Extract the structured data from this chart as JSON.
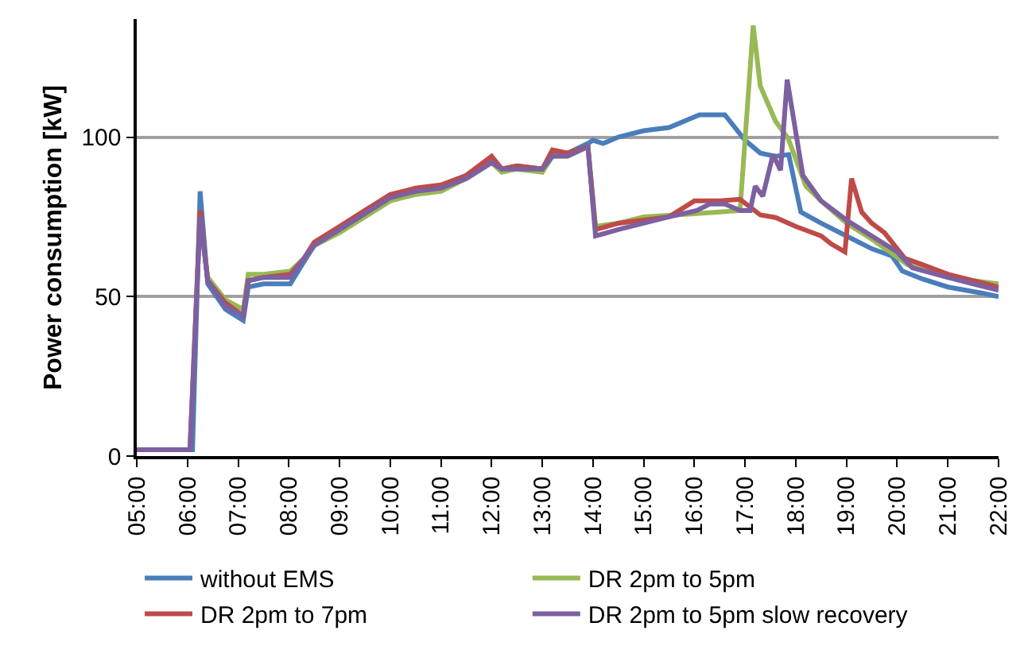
{
  "chart_data": {
    "type": "line",
    "ylabel": "Power consumption [kW]",
    "xlim": [
      5,
      22
    ],
    "xticks": [
      {
        "value": 5,
        "label": "05:00"
      },
      {
        "value": 6,
        "label": "06:00"
      },
      {
        "value": 7,
        "label": "07:00"
      },
      {
        "value": 8,
        "label": "08:00"
      },
      {
        "value": 9,
        "label": "09:00"
      },
      {
        "value": 10,
        "label": "10:00"
      },
      {
        "value": 11,
        "label": "11:00"
      },
      {
        "value": 12,
        "label": "12:00"
      },
      {
        "value": 13,
        "label": "13:00"
      },
      {
        "value": 14,
        "label": "14:00"
      },
      {
        "value": 15,
        "label": "15:00"
      },
      {
        "value": 16,
        "label": "16:00"
      },
      {
        "value": 17,
        "label": "17:00"
      },
      {
        "value": 18,
        "label": "18:00"
      },
      {
        "value": 19,
        "label": "19:00"
      },
      {
        "value": 20,
        "label": "20:00"
      },
      {
        "value": 21,
        "label": "21:00"
      },
      {
        "value": 22,
        "label": "22:00"
      }
    ],
    "ylim": [
      0,
      137
    ],
    "yticks": [
      0,
      50,
      100
    ],
    "grid": "y",
    "legend": "bottom",
    "marker": "none",
    "line_style": "solid",
    "series": [
      {
        "name": "without EMS",
        "color": "#4a7ebb",
        "x": [
          5,
          6.1,
          6.25,
          6.4,
          6.75,
          7.1,
          7.2,
          7.5,
          8.03,
          8.3,
          8.5,
          9,
          9.5,
          10,
          10.5,
          11,
          11.5,
          12,
          12.2,
          12.5,
          13,
          13.2,
          13.5,
          13.9,
          14,
          14.2,
          14.5,
          15,
          15.5,
          16.1,
          16.6,
          17,
          17.3,
          17.6,
          17.86,
          18.1,
          18.5,
          19,
          19.5,
          19.9,
          20.1,
          20.5,
          21,
          21.7,
          22
        ],
        "values": [
          2,
          2,
          83,
          54,
          46,
          42.5,
          53,
          54,
          54,
          61,
          66,
          71,
          76,
          81,
          83,
          84,
          88,
          93,
          90,
          91,
          90,
          95,
          95,
          98,
          99,
          98,
          100,
          102,
          103,
          107,
          107,
          99,
          95,
          94,
          94.5,
          76.5,
          73,
          69,
          65,
          62.7,
          58,
          55.5,
          53,
          51,
          50
        ]
      },
      {
        "name": "DR 2pm to 5pm",
        "color": "#98b954",
        "x": [
          6.25,
          6.4,
          6.75,
          7.1,
          7.2,
          7.5,
          8.03,
          8.3,
          8.5,
          9,
          9.5,
          10,
          10.5,
          11,
          11.5,
          12,
          12.2,
          12.5,
          13,
          13.2,
          13.5,
          13.9,
          14.05,
          14.5,
          15,
          16,
          16.9,
          17.16,
          17.3,
          17.6,
          17.85,
          18.2,
          18.5,
          19,
          19.5,
          19.9,
          20.2,
          21,
          21.5,
          22
        ],
        "values": [
          74,
          56,
          49,
          46,
          57,
          57,
          58,
          62,
          66,
          70,
          75,
          80,
          82,
          83,
          87,
          92,
          89,
          90,
          89,
          94,
          94,
          97,
          72,
          73,
          75,
          76,
          77,
          135,
          116,
          105,
          99.5,
          84.6,
          80,
          73,
          68,
          63.5,
          60,
          56,
          55,
          54
        ]
      },
      {
        "name": "DR 2pm to 7pm",
        "color": "#be4b48",
        "x": [
          5,
          6.05,
          6.25,
          6.4,
          6.75,
          7.1,
          7.2,
          7.5,
          8.03,
          8.3,
          8.5,
          9,
          9.5,
          10,
          10.5,
          11,
          11.5,
          12,
          12.2,
          12.5,
          13,
          13.2,
          13.5,
          13.9,
          14.05,
          14.5,
          15,
          15.5,
          15.8,
          16,
          16.5,
          16.9,
          17.3,
          17.6,
          18,
          18.5,
          18.7,
          18.97,
          19.1,
          19.3,
          19.5,
          19.75,
          20.15,
          20.5,
          21,
          21.5,
          22
        ],
        "values": [
          2,
          2,
          77,
          55,
          48,
          44,
          55,
          56,
          57,
          62,
          67,
          72,
          77,
          82,
          84,
          85,
          88,
          94,
          90,
          91,
          90,
          96,
          95,
          97,
          71,
          73,
          74,
          75,
          78,
          80,
          80,
          80.5,
          75.6,
          74.8,
          72,
          69,
          66.5,
          64,
          87,
          76.5,
          73,
          70,
          62,
          60,
          57,
          55,
          53
        ]
      },
      {
        "name": "DR 2pm to 5pm slow recovery",
        "color": "#7d60a0",
        "x": [
          5,
          6.05,
          6.25,
          6.4,
          6.75,
          7.1,
          7.2,
          7.5,
          8.03,
          8.3,
          8.5,
          9,
          9.5,
          10,
          10.5,
          11,
          11.5,
          12,
          12.2,
          12.5,
          13,
          13.2,
          13.5,
          13.9,
          14.05,
          14.5,
          15,
          15.5,
          16.05,
          16.3,
          16.6,
          16.9,
          17.1,
          17.2,
          17.35,
          17.55,
          17.7,
          17.83,
          18.14,
          18.5,
          19,
          19.5,
          20,
          20.3,
          21,
          21.5,
          22
        ],
        "values": [
          2,
          2,
          75,
          55,
          47,
          44,
          55,
          56,
          56,
          62,
          66,
          71,
          76,
          81,
          83,
          84,
          87,
          92,
          90,
          90,
          90,
          94,
          94,
          97,
          69,
          71,
          73,
          75,
          77,
          79,
          79,
          77,
          77,
          84.6,
          81.5,
          94.5,
          89.6,
          118,
          88,
          80,
          74,
          69,
          64,
          59,
          56,
          54,
          52
        ]
      }
    ]
  }
}
